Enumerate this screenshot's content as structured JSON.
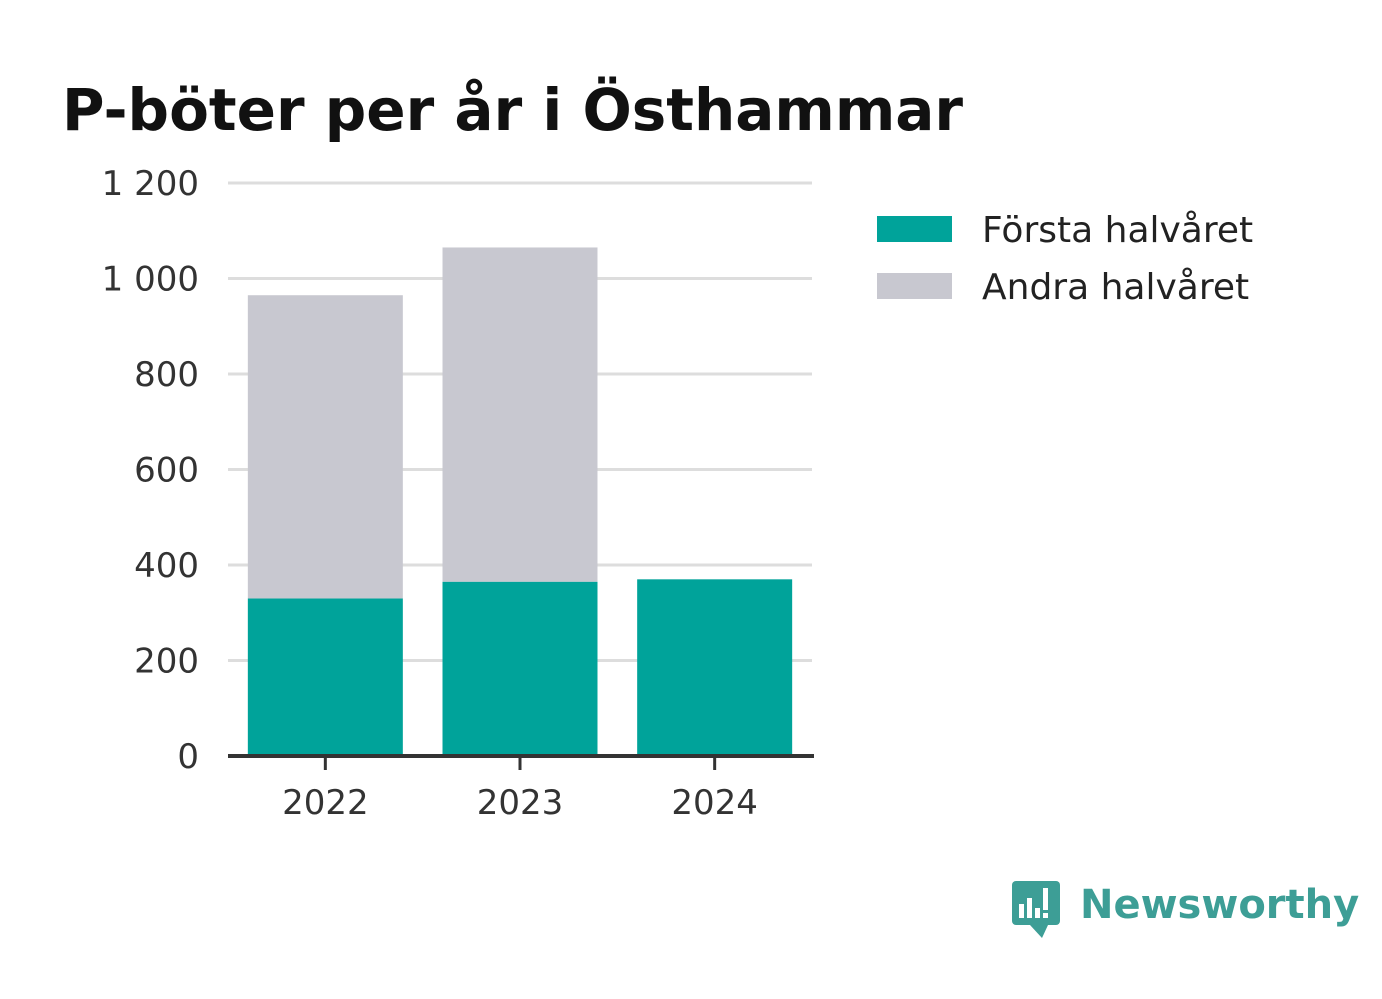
{
  "colors": {
    "first_half": "#00a39a",
    "second_half": "#c8c8d0",
    "grid": "#dddddd",
    "axis": "#333333",
    "brand": "#3d9e96"
  },
  "brand": {
    "name": "Newsworthy",
    "icon": "newsworthy-logo-icon"
  },
  "chart_data": {
    "type": "bar",
    "stacked": true,
    "title": "P-böter per år i Östhammar",
    "xlabel": "",
    "ylabel": "",
    "categories": [
      "2022",
      "2023",
      "2024"
    ],
    "series": [
      {
        "name": "Första halvåret",
        "values": [
          330,
          365,
          370
        ],
        "color": "#00a39a"
      },
      {
        "name": "Andra halvåret",
        "values": [
          635,
          700,
          0
        ],
        "color": "#c8c8d0"
      }
    ],
    "ylim": [
      0,
      1200
    ],
    "yticks": [
      0,
      200,
      400,
      600,
      800,
      1000,
      1200
    ],
    "ytick_labels": [
      "0",
      "200",
      "400",
      "600",
      "800",
      "1 000",
      "1 200"
    ],
    "grid": true,
    "legend": "right"
  }
}
